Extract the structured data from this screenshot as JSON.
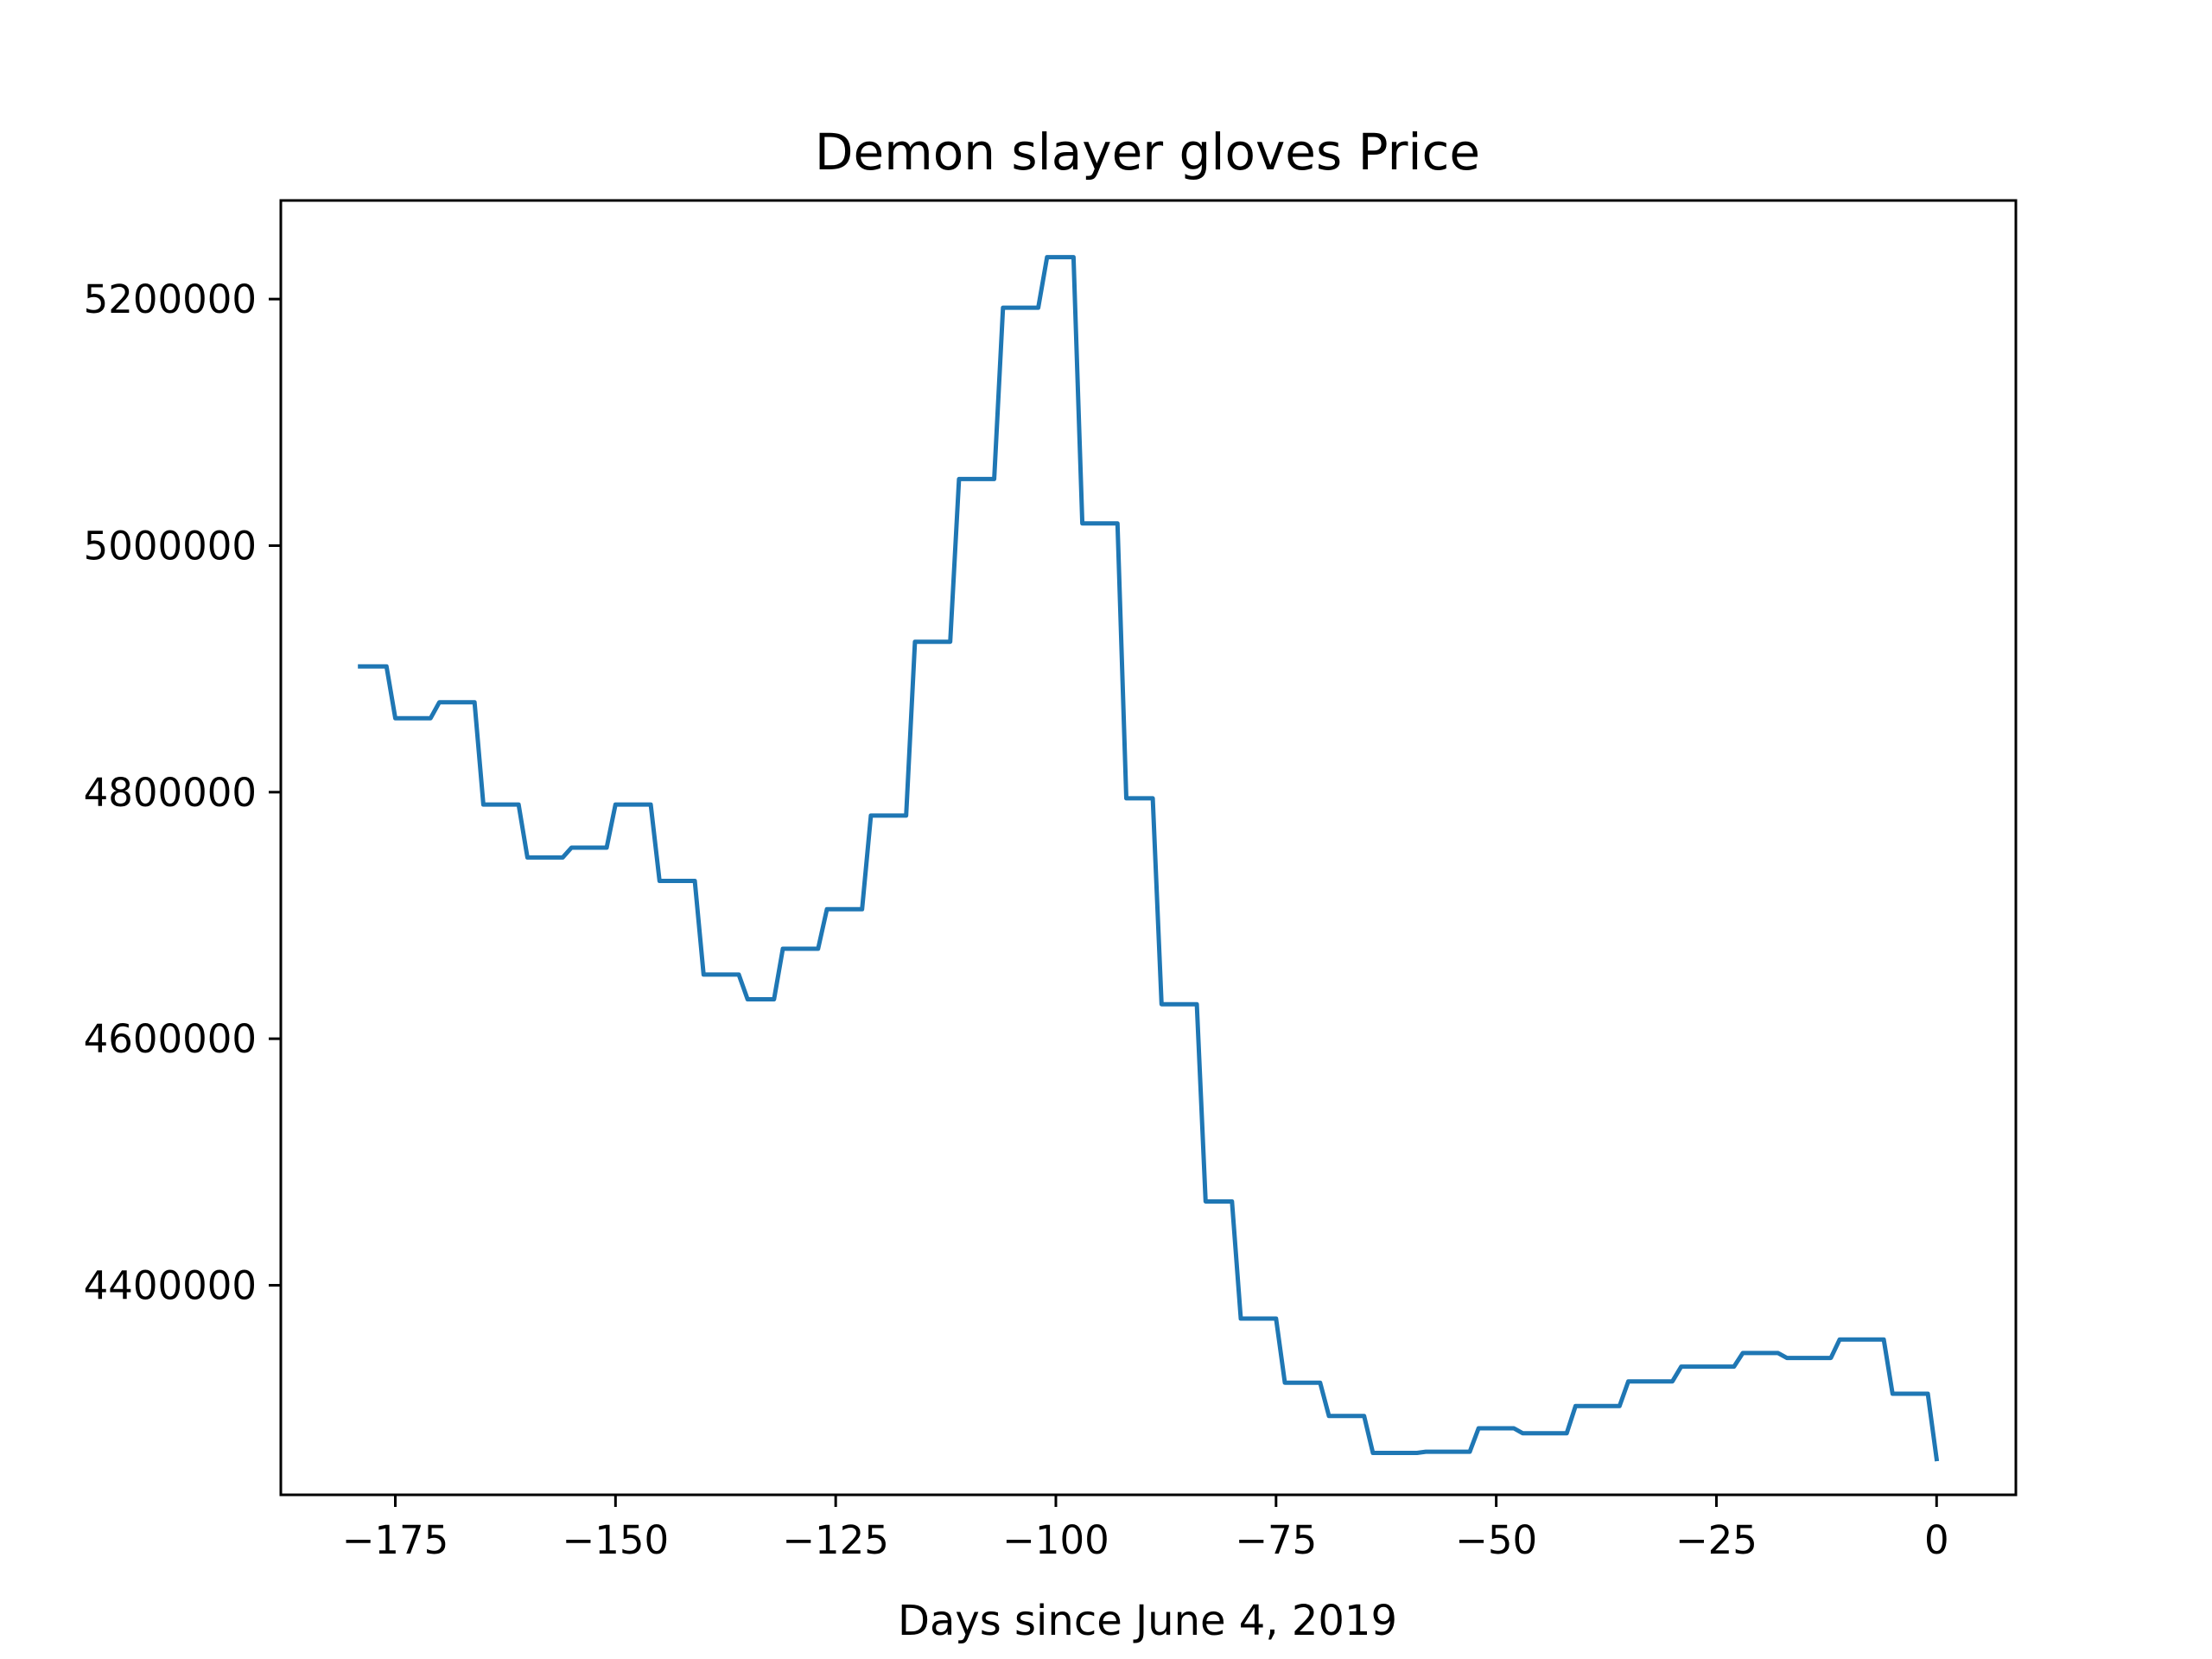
{
  "chart_data": {
    "type": "line",
    "title": "Demon slayer gloves Price",
    "xlabel": "Days since June 4, 2019",
    "ylabel": "",
    "xlim": [
      -188,
      9
    ],
    "ylim": [
      4230000,
      5280000
    ],
    "grid": false,
    "legend": "none",
    "x_ticks": [
      -175,
      -150,
      -125,
      -100,
      -75,
      -50,
      -25,
      0
    ],
    "x_tick_labels": [
      "−175",
      "−150",
      "−125",
      "−100",
      "−75",
      "−50",
      "−25",
      "0"
    ],
    "y_ticks": [
      4400000,
      4600000,
      4800000,
      5000000,
      5200000
    ],
    "y_tick_labels": [
      "4400000",
      "4600000",
      "4800000",
      "5000000",
      "5200000"
    ],
    "series": [
      {
        "color": "#1f77b4",
        "x": [
          -179,
          -176,
          -175,
          -171,
          -170,
          -166,
          -165,
          -161,
          -160,
          -156,
          -155,
          -151,
          -150,
          -146,
          -145,
          -141,
          -140,
          -136,
          -135,
          -132,
          -131,
          -127,
          -126,
          -122,
          -121,
          -117,
          -116,
          -112,
          -111,
          -107,
          -106,
          -102,
          -101,
          -98,
          -97,
          -93,
          -92,
          -89,
          -88,
          -84,
          -83,
          -80,
          -79,
          -75,
          -74,
          -70,
          -69,
          -65,
          -64,
          -59,
          -58,
          -53,
          -52,
          -48,
          -47,
          -42,
          -41,
          -36,
          -35,
          -30,
          -29,
          -23,
          -22,
          -18,
          -17,
          -12,
          -11,
          -6,
          -5,
          -1,
          0
        ],
        "y": [
          4902000,
          4902000,
          4860000,
          4860000,
          4873000,
          4873000,
          4790000,
          4790000,
          4747000,
          4747000,
          4755000,
          4755000,
          4790000,
          4790000,
          4728000,
          4728000,
          4652000,
          4652000,
          4632000,
          4632000,
          4673000,
          4673000,
          4705000,
          4705000,
          4781000,
          4781000,
          4922000,
          4922000,
          5054000,
          5054000,
          5193000,
          5193000,
          5234000,
          5234000,
          5018000,
          5018000,
          4795000,
          4795000,
          4628000,
          4628000,
          4468000,
          4468000,
          4373000,
          4373000,
          4321000,
          4321000,
          4294000,
          4294000,
          4264000,
          4264000,
          4265000,
          4265000,
          4284000,
          4284000,
          4280000,
          4280000,
          4302000,
          4302000,
          4322000,
          4322000,
          4334000,
          4334000,
          4345000,
          4345000,
          4341000,
          4341000,
          4356000,
          4356000,
          4312000,
          4312000,
          4259000
        ]
      }
    ]
  }
}
